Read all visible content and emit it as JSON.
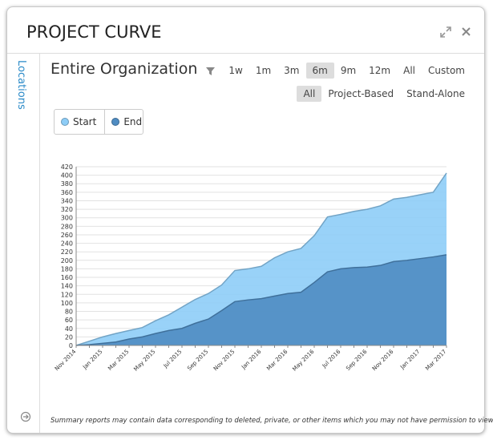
{
  "header": {
    "title": "PROJECT CURVE"
  },
  "sidebar": {
    "label": "Locations"
  },
  "toolbar": {
    "title": "Entire Organization",
    "ranges": [
      "1w",
      "1m",
      "3m",
      "6m",
      "9m",
      "12m",
      "All",
      "Custom"
    ],
    "selected_range": 3,
    "filters": [
      "All",
      "Project-Based",
      "Stand-Alone"
    ],
    "selected_filter": 0
  },
  "chart_data": {
    "type": "area",
    "categories": [
      "Nov 2014",
      null,
      "Jan 2015",
      null,
      "Mar 2015",
      null,
      "May 2015",
      null,
      "Jul 2015",
      null,
      "Sep 2015",
      null,
      "Nov 2015",
      null,
      "Jan 2016",
      null,
      "Mar 2016",
      null,
      "May 2016",
      null,
      "Jul 2016",
      null,
      "Sep 2016",
      null,
      "Nov 2016",
      null,
      "Jan 2017",
      null,
      "Mar 2017"
    ],
    "series": [
      {
        "name": "Start",
        "color": "#8ecdf7",
        "values": [
          0,
          10,
          20,
          28,
          35,
          42,
          58,
          72,
          90,
          108,
          122,
          142,
          176,
          180,
          186,
          206,
          220,
          228,
          258,
          302,
          308,
          315,
          320,
          328,
          344,
          348,
          354,
          360,
          405
        ]
      },
      {
        "name": "End",
        "color": "#4f8cc2",
        "values": [
          0,
          2,
          5,
          8,
          15,
          20,
          28,
          35,
          40,
          52,
          62,
          82,
          103,
          107,
          110,
          116,
          122,
          125,
          148,
          173,
          180,
          183,
          184,
          188,
          197,
          200,
          204,
          208,
          213
        ]
      }
    ],
    "ylim": [
      0,
      420
    ],
    "yticks": [
      0,
      20,
      40,
      60,
      80,
      100,
      120,
      140,
      160,
      180,
      200,
      220,
      240,
      260,
      280,
      300,
      320,
      340,
      360,
      380,
      400,
      420
    ],
    "grid": true
  },
  "footer": {
    "note": "Summary reports may contain data corresponding to deleted, private, or other items which you may not have permission to view."
  }
}
